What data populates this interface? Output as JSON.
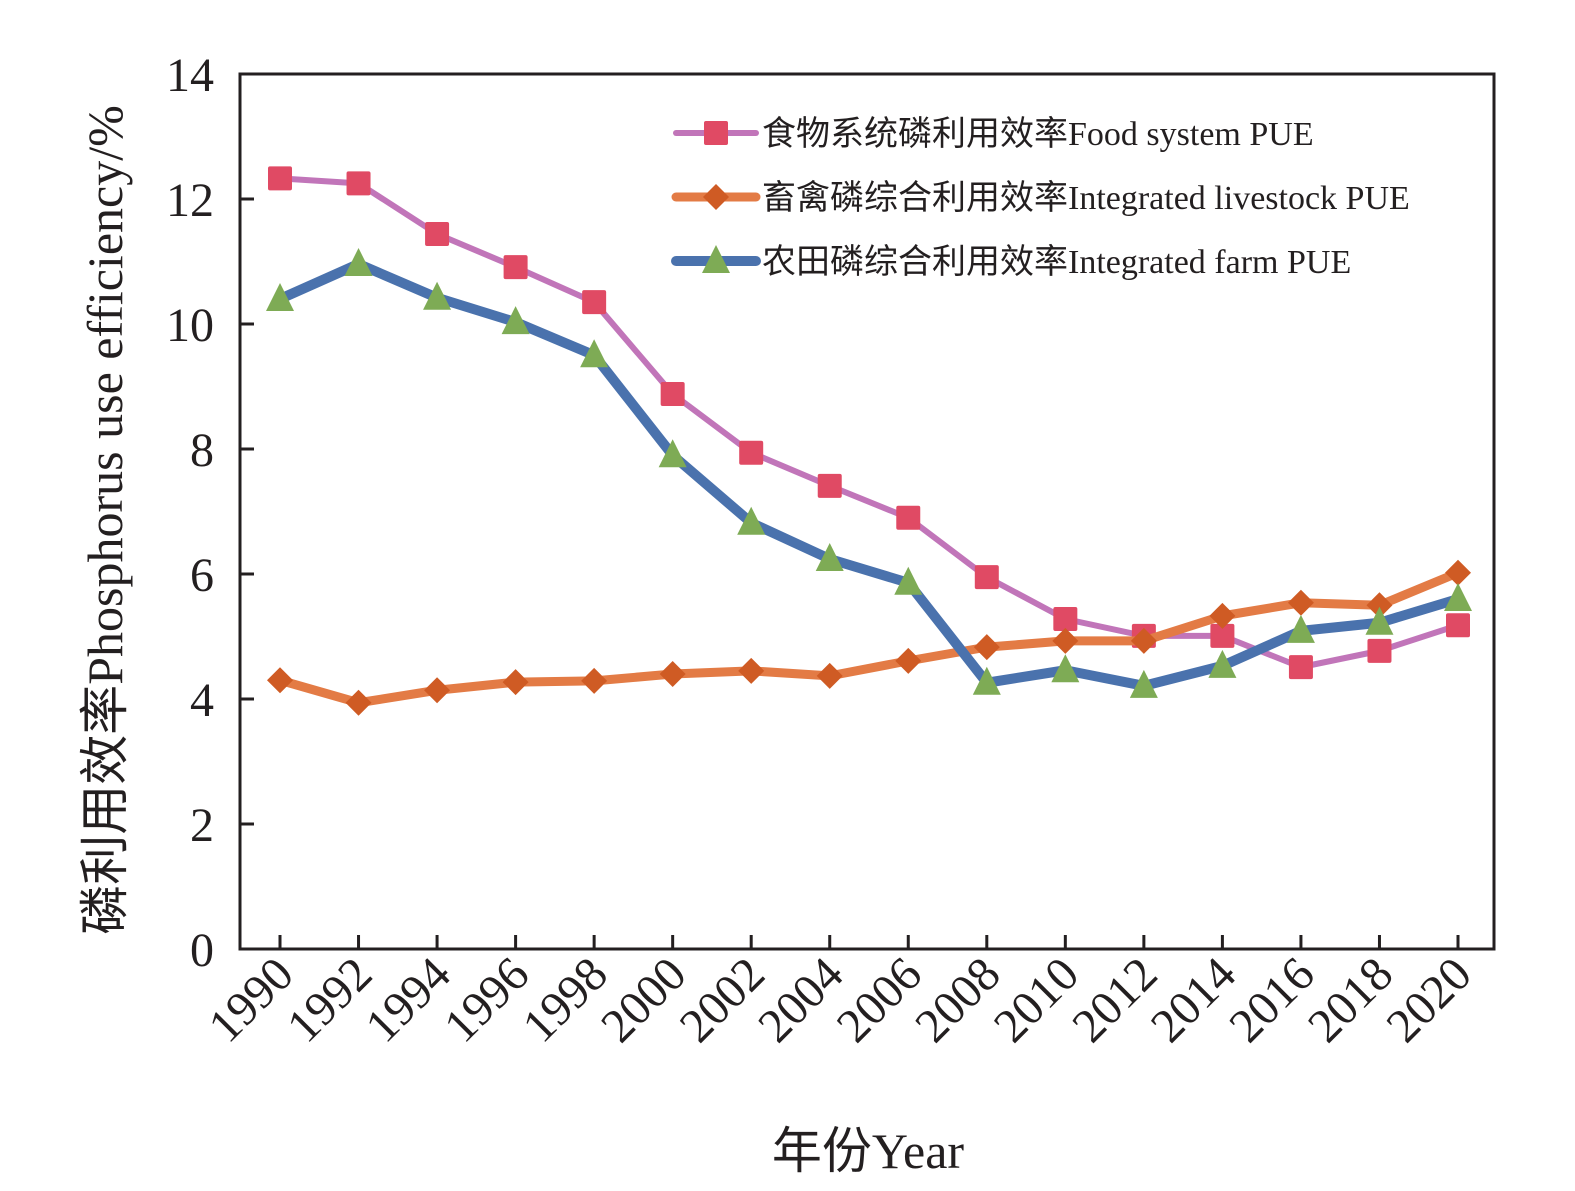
{
  "chart_data": {
    "type": "line",
    "title": "",
    "xlabel": "年份Year",
    "ylabel": "磷利用效率Phosphorus use efficiency/%",
    "ylim": [
      0,
      14
    ],
    "yticks": [
      "0",
      "2",
      "4",
      "6",
      "8",
      "10",
      "12",
      "14"
    ],
    "ytick_values": [
      0,
      2,
      4,
      6,
      8,
      10,
      12,
      14
    ],
    "x": [
      1990,
      1992,
      1994,
      1996,
      1998,
      2000,
      2002,
      2004,
      2006,
      2008,
      2010,
      2012,
      2014,
      2016,
      2018,
      2020
    ],
    "xtick_labels": [
      "1990",
      "1992",
      "1994",
      "1996",
      "1998",
      "2000",
      "2002",
      "2004",
      "2006",
      "2008",
      "2010",
      "2012",
      "2014",
      "2016",
      "2018",
      "2020"
    ],
    "grid": false,
    "legend_position": "top-right",
    "series": [
      {
        "name": "食物系统磷利用效率Food system PUE",
        "marker": "square",
        "line_color": "#c175b9",
        "marker_color": "#e04a64",
        "values": [
          12.33,
          12.25,
          11.44,
          10.91,
          10.35,
          8.88,
          7.94,
          7.41,
          6.9,
          5.95,
          5.28,
          5.01,
          5.01,
          4.51,
          4.77,
          5.18
        ]
      },
      {
        "name": "畜禽磷综合利用效率Integrated livestock PUE",
        "marker": "diamond",
        "line_color": "#e37b45",
        "marker_color": "#cf5b24",
        "values": [
          4.3,
          3.94,
          4.14,
          4.27,
          4.29,
          4.4,
          4.45,
          4.37,
          4.61,
          4.83,
          4.93,
          4.93,
          5.33,
          5.54,
          5.5,
          6.02
        ]
      },
      {
        "name": "农田磷综合利用效率Integrated farm PUE",
        "marker": "triangle",
        "line_color": "#4a72ad",
        "marker_color": "#7eab55",
        "values": [
          10.4,
          10.96,
          10.42,
          10.03,
          9.5,
          7.9,
          6.82,
          6.24,
          5.86,
          4.26,
          4.46,
          4.21,
          4.53,
          5.09,
          5.22,
          5.6
        ]
      }
    ]
  }
}
